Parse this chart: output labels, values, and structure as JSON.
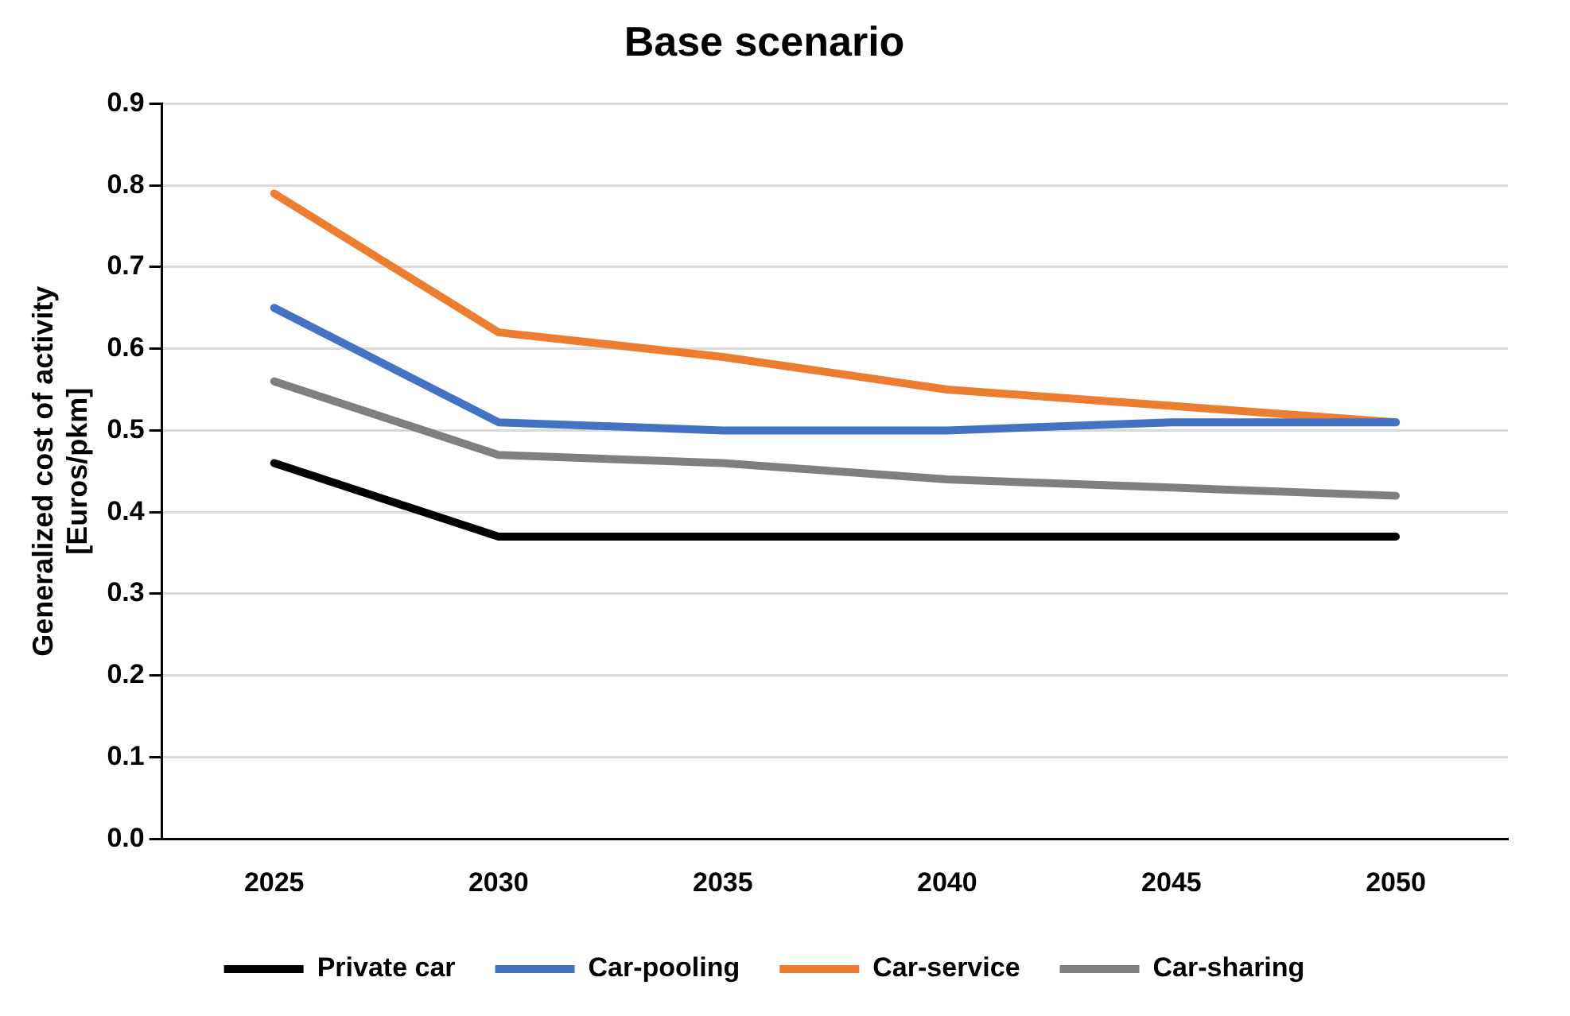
{
  "chart_data": {
    "type": "line",
    "title": "Base scenario",
    "ylabel": "Generalized cost of activity\n[Euros/pkm]",
    "categories": [
      "2025",
      "2030",
      "2035",
      "2040",
      "2045",
      "2050"
    ],
    "series": [
      {
        "name": "Private car",
        "color": "#000000",
        "values": [
          0.46,
          0.37,
          0.37,
          0.37,
          0.37,
          0.37
        ]
      },
      {
        "name": "Car-pooling",
        "color": "#4472c4",
        "values": [
          0.65,
          0.51,
          0.5,
          0.5,
          0.51,
          0.51
        ]
      },
      {
        "name": "Car-service",
        "color": "#ed7d31",
        "values": [
          0.79,
          0.62,
          0.59,
          0.55,
          0.53,
          0.51
        ]
      },
      {
        "name": "Car-sharing",
        "color": "#7f7f7f",
        "values": [
          0.56,
          0.47,
          0.46,
          0.44,
          0.43,
          0.42
        ]
      }
    ],
    "ylim": [
      0,
      0.9
    ],
    "yticks": [
      {
        "value": 0,
        "label": "0.0"
      },
      {
        "value": 0.1,
        "label": "0.1"
      },
      {
        "value": 0.2,
        "label": "0.2"
      },
      {
        "value": 0.3,
        "label": "0.3"
      },
      {
        "value": 0.4,
        "label": "0.4"
      },
      {
        "value": 0.5,
        "label": "0.5"
      },
      {
        "value": 0.6,
        "label": "0.6"
      },
      {
        "value": 0.7,
        "label": "0.7"
      },
      {
        "value": 0.8,
        "label": "0.8"
      },
      {
        "value": 0.9,
        "label": "0.9"
      }
    ],
    "grid": "y",
    "legend": "bottom",
    "marker": "none",
    "line_style": "solid"
  }
}
